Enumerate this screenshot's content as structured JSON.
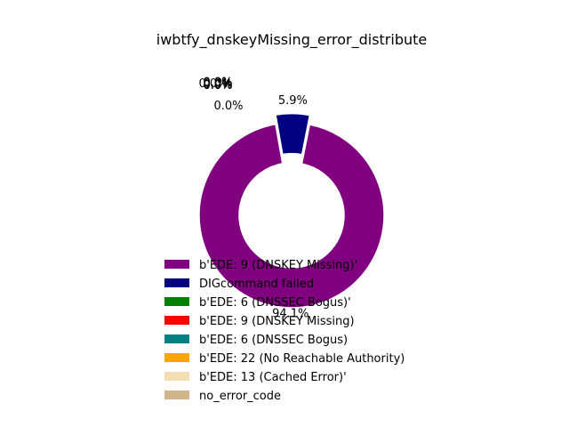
{
  "chart_data": {
    "type": "pie",
    "donut": true,
    "title": "iwbtfy_dnskeyMissing_error_distribute",
    "legend_position": "lower-left",
    "slices": [
      {
        "label": "b'EDE: 9 (DNSKEY Missing)'",
        "value": 94.1,
        "pct_label": "94.1%",
        "color": "#800080"
      },
      {
        "label": "DIGcommand failed",
        "value": 5.9,
        "pct_label": "5.9%",
        "color": "#000080"
      },
      {
        "label": "b'EDE: 6 (DNSSEC Bogus)'",
        "value": 0.0,
        "pct_label": "0.0%",
        "color": "#008000"
      },
      {
        "label": "b'EDE: 9 (DNSKEY Missing)",
        "value": 0.0,
        "pct_label": "0.0%",
        "color": "#ff0000"
      },
      {
        "label": "b'EDE: 6 (DNSSEC Bogus)",
        "value": 0.0,
        "pct_label": "0.0%",
        "color": "#008080"
      },
      {
        "label": "b'EDE: 22 (No Reachable Authority)",
        "value": 0.0,
        "pct_label": "0.0%",
        "color": "#ffa500"
      },
      {
        "label": "b'EDE: 13 (Cached Error)'",
        "value": 0.0,
        "pct_label": "0.0%",
        "color": "#f5deb3"
      },
      {
        "label": "no_error_code",
        "value": 0.0,
        "pct_label": "0.0%",
        "color": "#d2b48c"
      }
    ]
  }
}
